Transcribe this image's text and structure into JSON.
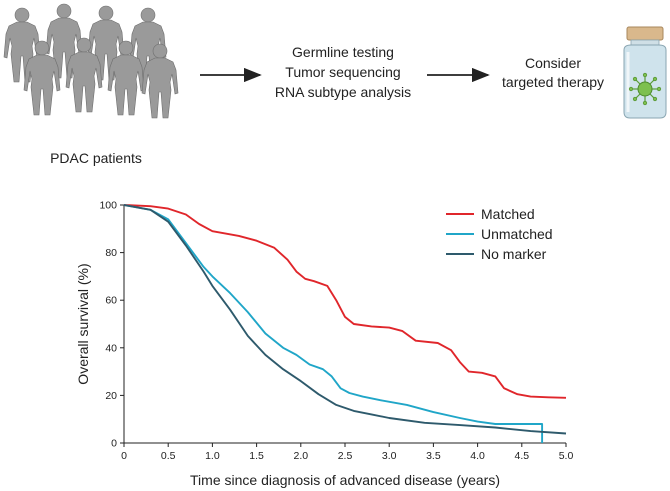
{
  "workflow": {
    "patients_label": "PDAC patients",
    "steps": [
      "Germline testing",
      "Tumor sequencing",
      "RNA subtype analysis"
    ],
    "outcome": [
      "Consider",
      "targeted therapy"
    ]
  },
  "chart_data": {
    "type": "line",
    "xlabel": "Time since diagnosis of advanced disease (years)",
    "ylabel": "Overall survival (%)",
    "xlim": [
      0,
      5.0
    ],
    "ylim": [
      0,
      100
    ],
    "xticks": [
      "0",
      "0.5",
      "1.0",
      "1.5",
      "2.0",
      "2.5",
      "3.0",
      "3.5",
      "4.0",
      "4.5",
      "5.0"
    ],
    "yticks": [
      "0",
      "20",
      "40",
      "60",
      "80",
      "100"
    ],
    "legend_position": "top-right",
    "series": [
      {
        "name": "Matched",
        "color": "#e0262b",
        "x": [
          0,
          0.3,
          0.5,
          0.7,
          0.85,
          1.0,
          1.15,
          1.3,
          1.5,
          1.7,
          1.85,
          1.95,
          2.05,
          2.15,
          2.3,
          2.4,
          2.5,
          2.6,
          2.8,
          3.0,
          3.15,
          3.3,
          3.55,
          3.7,
          3.8,
          3.9,
          4.05,
          4.2,
          4.3,
          4.45,
          4.6,
          4.8,
          5.0
        ],
        "values": [
          100,
          99.5,
          98.5,
          96,
          92,
          89,
          88,
          87,
          85,
          82,
          77,
          72,
          69,
          68,
          66,
          60,
          53,
          50,
          49,
          48.5,
          47,
          43,
          42,
          39,
          34,
          30,
          29.5,
          28,
          23,
          20.5,
          19.5,
          19.2,
          19
        ]
      },
      {
        "name": "Unmatched",
        "color": "#20a6c8",
        "x": [
          0,
          0.3,
          0.5,
          0.7,
          0.9,
          1.0,
          1.2,
          1.4,
          1.6,
          1.8,
          1.95,
          2.1,
          2.25,
          2.35,
          2.45,
          2.55,
          2.7,
          2.9,
          3.2,
          3.5,
          3.8,
          4.0,
          4.2,
          4.4,
          4.6,
          4.73,
          4.73
        ],
        "values": [
          100,
          98,
          94,
          84,
          74,
          70,
          63,
          55,
          46,
          40,
          37,
          33,
          31,
          28,
          23,
          21,
          19.5,
          18,
          16,
          13,
          10.5,
          9,
          8,
          8,
          8,
          8,
          0
        ]
      },
      {
        "name": "No marker",
        "color": "#2e5a6c",
        "x": [
          0,
          0.3,
          0.5,
          0.7,
          0.9,
          1.0,
          1.2,
          1.4,
          1.6,
          1.8,
          2.0,
          2.2,
          2.4,
          2.6,
          2.8,
          3.0,
          3.4,
          3.8,
          4.2,
          4.6,
          5.0
        ],
        "values": [
          100,
          98,
          93,
          83,
          72,
          66,
          56,
          45,
          37,
          31,
          26,
          20.5,
          16,
          13.5,
          12,
          10.5,
          8.5,
          7.5,
          6.5,
          5,
          4
        ]
      }
    ]
  }
}
